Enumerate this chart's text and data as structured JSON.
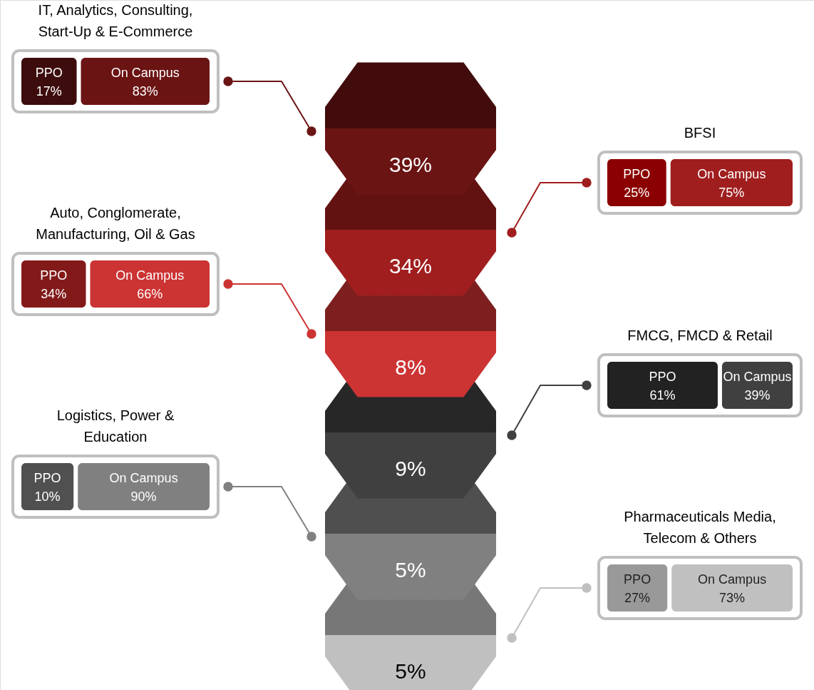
{
  "chart_data": {
    "type": "other",
    "categories": [
      "IT, Analytics, Consulting, Start-Up & E-Commerce",
      "BFSI",
      "Auto, Conglomerate, Manufacturing, Oil & Gas",
      "FMCG, FMCD & Retail",
      "Logistics, Power & Education",
      "Pharmaceuticals  Media, Telecom & Others"
    ],
    "value_labels": [
      "39%",
      "34%",
      "8%",
      "9%",
      "5%",
      "5%"
    ],
    "colors": [
      "#6b1414",
      "#a01e1e",
      "#cc3333",
      "#404040",
      "#808080",
      "#c0c0c0"
    ],
    "series": [
      {
        "name": "PPO",
        "values": [
          17,
          25,
          34,
          61,
          10,
          27
        ],
        "value_labels": [
          "17%",
          "25%",
          "34%",
          "61%",
          "10%",
          "27%"
        ],
        "colors": [
          "#3d0c0c",
          "#8b0000",
          "#821a1a",
          "#222222",
          "#505050",
          "#999999"
        ]
      },
      {
        "name": "On Campus",
        "values": [
          83,
          75,
          66,
          39,
          90,
          73
        ],
        "value_labels": [
          "83%",
          "75%",
          "66%",
          "39%",
          "90%",
          "73%"
        ],
        "colors": [
          "#6b1414",
          "#a01e1e",
          "#cc3333",
          "#404040",
          "#808080",
          "#c0c0c0"
        ]
      }
    ]
  }
}
